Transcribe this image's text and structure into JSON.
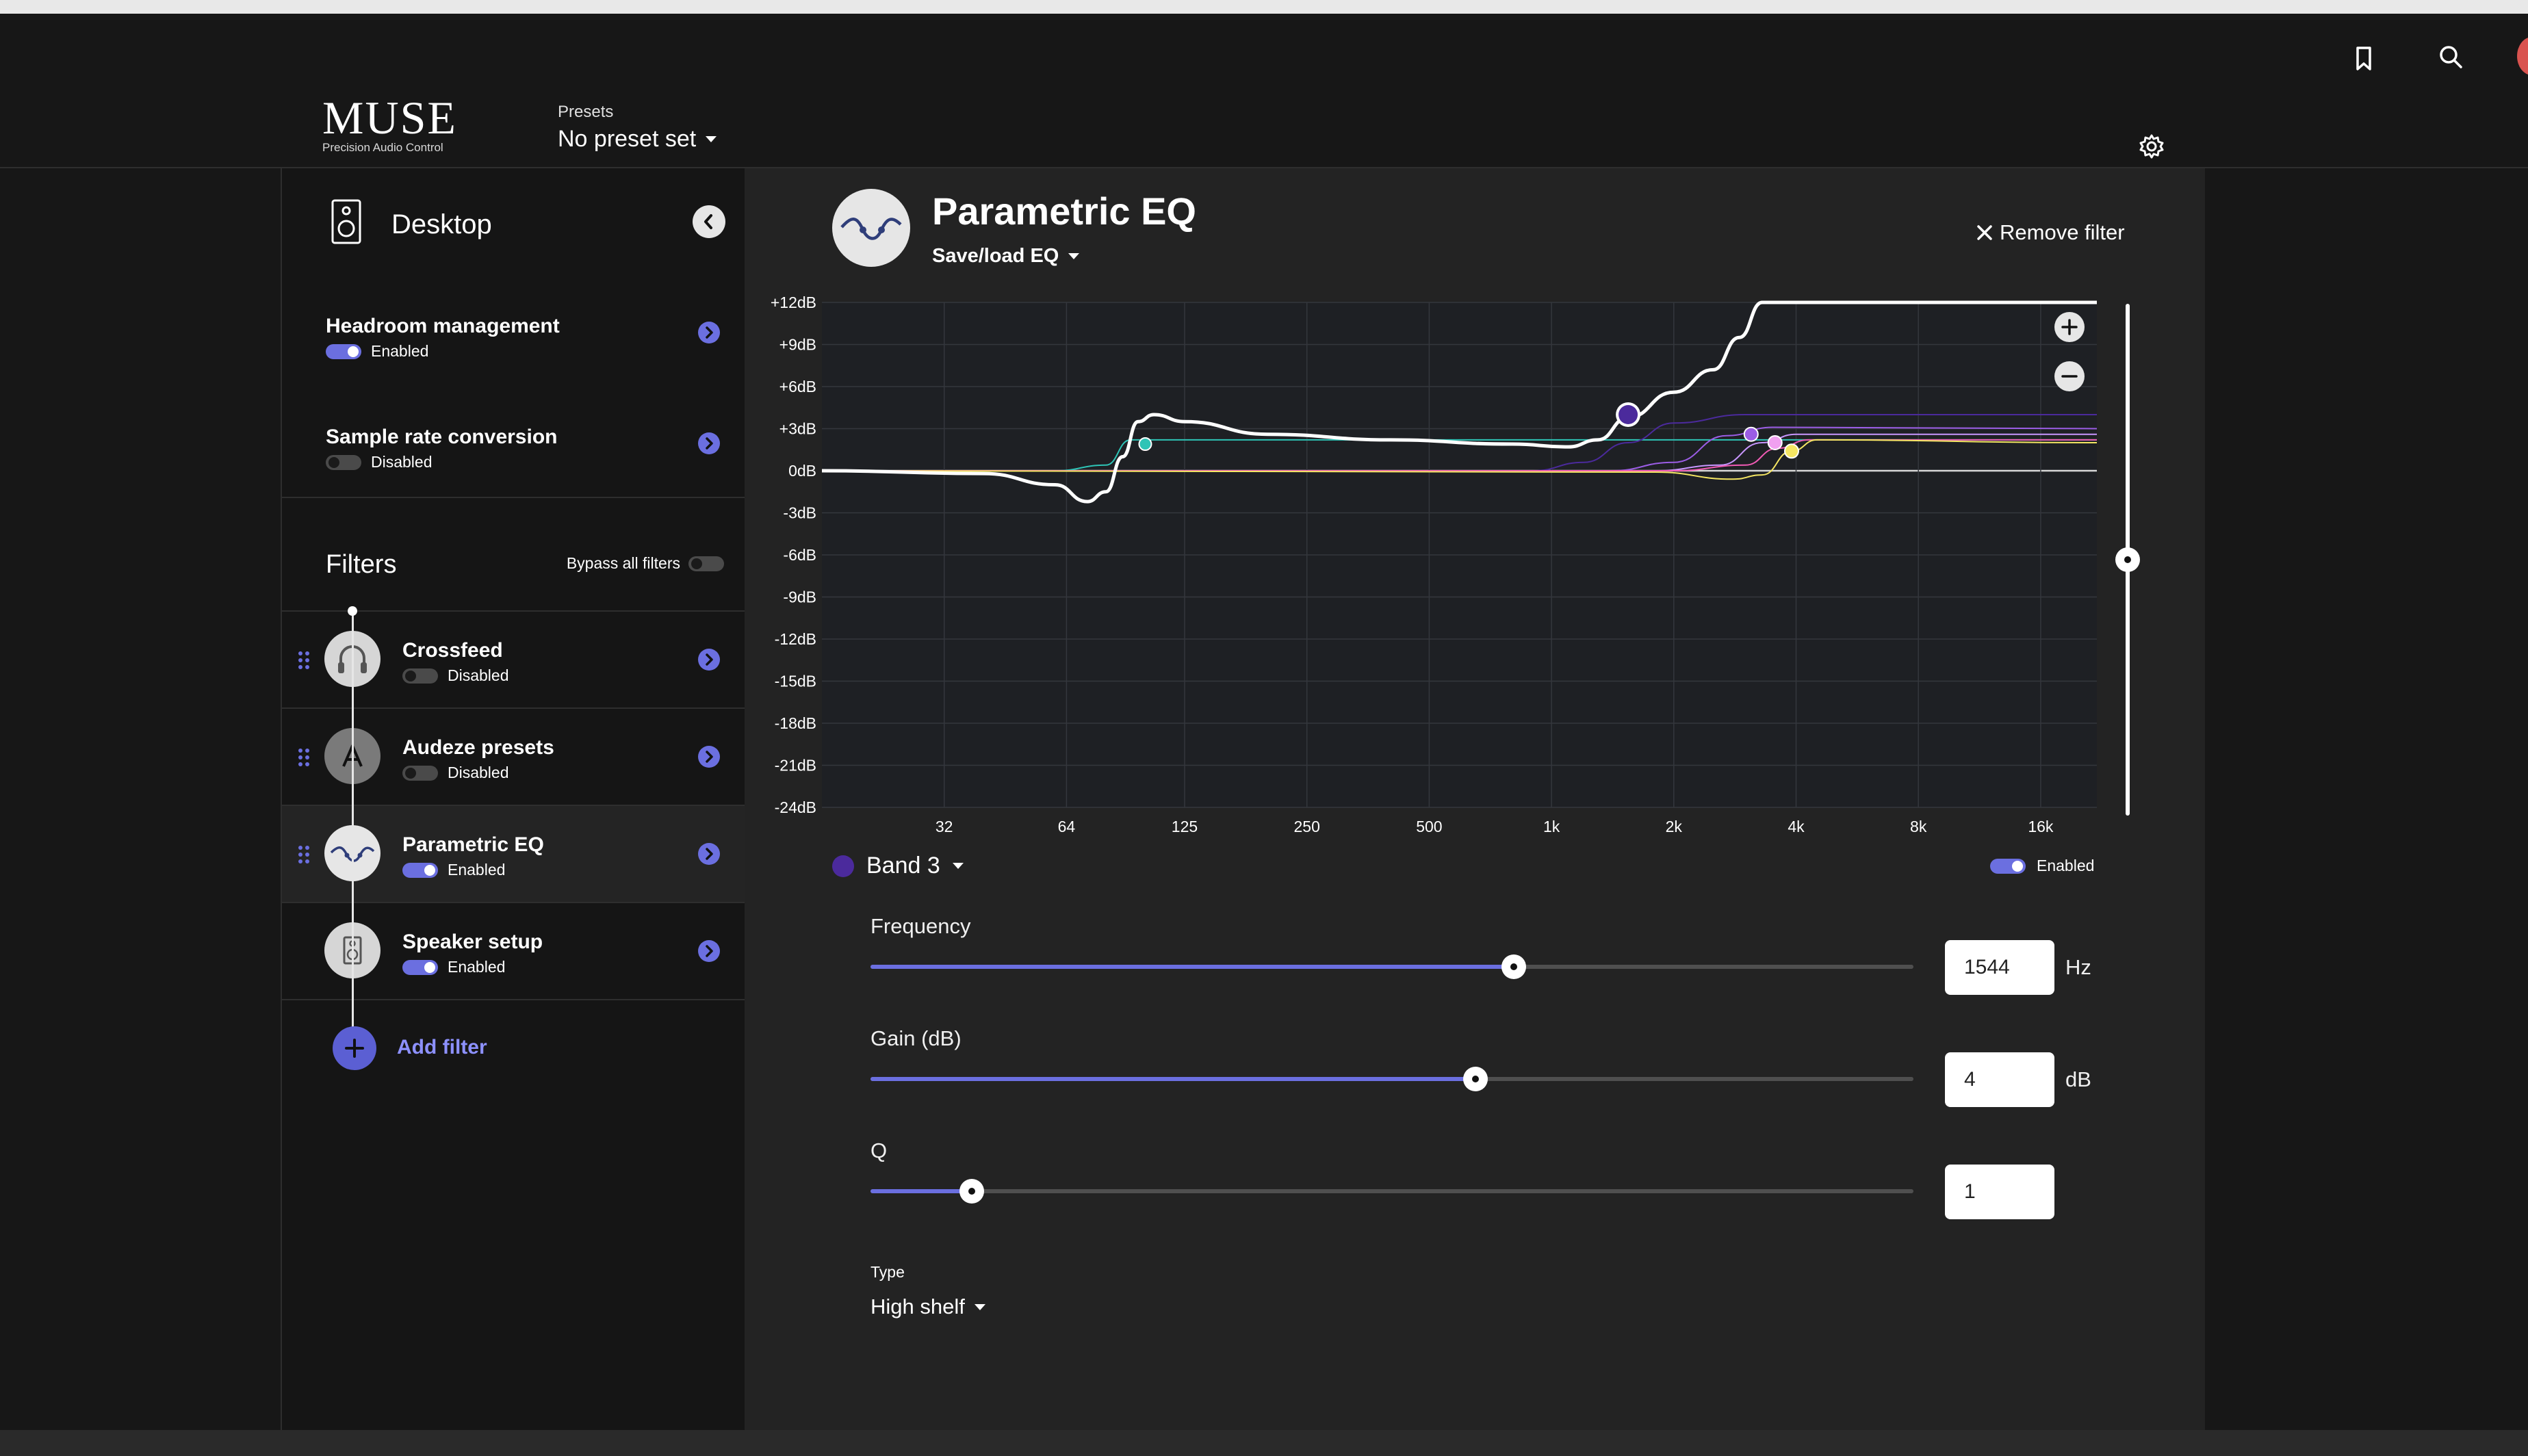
{
  "app": {
    "logo_main": "MUSE",
    "logo_sub": "Precision Audio Control"
  },
  "header": {
    "presets_label": "Presets",
    "presets_value": "No preset set",
    "icons": [
      "bookmark-icon",
      "search-icon",
      "settings-gear-icon"
    ]
  },
  "sidebar": {
    "device": "Desktop",
    "settings": [
      {
        "title": "Headroom management",
        "status": "Enabled",
        "on": true
      },
      {
        "title": "Sample rate conversion",
        "status": "Disabled",
        "on": false
      }
    ],
    "filters_title": "Filters",
    "bypass_label": "Bypass all filters",
    "filters": [
      {
        "title": "Crossfeed",
        "status": "Disabled",
        "on": false,
        "icon": "headphones-icon"
      },
      {
        "title": "Audeze presets",
        "status": "Disabled",
        "on": false,
        "icon": "audeze-logo-icon"
      },
      {
        "title": "Parametric EQ",
        "status": "Enabled",
        "on": true,
        "icon": "eq-wave-icon"
      },
      {
        "title": "Speaker setup",
        "status": "Enabled",
        "on": true,
        "icon": "speaker-icon"
      }
    ],
    "add_filter": "Add filter"
  },
  "eq": {
    "title": "Parametric EQ",
    "save_load": "Save/load EQ",
    "remove": "Remove filter",
    "band_label": "Band 3",
    "band_enabled": "Enabled",
    "params": {
      "frequency": {
        "label": "Frequency",
        "value": "1544",
        "unit": "Hz",
        "position": 0.617
      },
      "gain": {
        "label": "Gain (dB)",
        "value": "4",
        "unit": "dB",
        "position": 0.58
      },
      "q": {
        "label": "Q",
        "value": "1",
        "unit": "",
        "position": 0.097
      }
    },
    "type_label": "Type",
    "type_value": "High shelf",
    "zoom_plus": "+",
    "zoom_minus": "−"
  },
  "chart_data": {
    "type": "line",
    "title": "",
    "xlabel": "",
    "ylabel": "",
    "x_scale": "log",
    "xlim": [
      16,
      22000
    ],
    "ylim": [
      -24,
      12
    ],
    "x_ticks": [
      "32",
      "64",
      "125",
      "250",
      "500",
      "1k",
      "2k",
      "4k",
      "8k",
      "16k"
    ],
    "x_tick_values": [
      32,
      64,
      125,
      250,
      500,
      1000,
      2000,
      4000,
      8000,
      16000
    ],
    "y_ticks": [
      "+12dB",
      "+9dB",
      "+6dB",
      "+3dB",
      "0dB",
      "-3dB",
      "-6dB",
      "-9dB",
      "-12dB",
      "-15dB",
      "-18dB",
      "-21dB",
      "-24dB"
    ],
    "y_tick_values": [
      12,
      9,
      6,
      3,
      0,
      -3,
      -6,
      -9,
      -12,
      -15,
      -18,
      -21,
      -24
    ],
    "grid": true,
    "series": [
      {
        "color": "#ffffff",
        "width": 5,
        "points": [
          [
            16,
            0
          ],
          [
            40,
            -0.2
          ],
          [
            60,
            -1
          ],
          [
            72,
            -2.2
          ],
          [
            80,
            -1.5
          ],
          [
            88,
            1
          ],
          [
            96,
            3.5
          ],
          [
            105,
            4
          ],
          [
            125,
            3.5
          ],
          [
            200,
            2.6
          ],
          [
            400,
            2.2
          ],
          [
            800,
            1.9
          ],
          [
            1100,
            1.7
          ],
          [
            1300,
            2.2
          ],
          [
            1544,
            3.8
          ],
          [
            2000,
            5.6
          ],
          [
            2500,
            7.2
          ],
          [
            2900,
            9.5
          ],
          [
            3300,
            12
          ],
          [
            8000,
            12
          ],
          [
            22000,
            12
          ]
        ]
      },
      {
        "color": "#2ec4b6",
        "width": 2,
        "points": [
          [
            16,
            0
          ],
          [
            60,
            0
          ],
          [
            80,
            0.4
          ],
          [
            92,
            2.2
          ],
          [
            110,
            2.2
          ],
          [
            2000,
            2.2
          ],
          [
            22000,
            2.2
          ]
        ]
      },
      {
        "color": "#4b2a9c",
        "width": 2,
        "points": [
          [
            16,
            0
          ],
          [
            900,
            0
          ],
          [
            1200,
            0.6
          ],
          [
            1544,
            2
          ],
          [
            2000,
            3.4
          ],
          [
            3000,
            4
          ],
          [
            22000,
            4
          ]
        ]
      },
      {
        "color": "#9b5de5",
        "width": 2,
        "points": [
          [
            16,
            0
          ],
          [
            1400,
            0
          ],
          [
            2000,
            0.6
          ],
          [
            2700,
            2.5
          ],
          [
            3500,
            3.1
          ],
          [
            22000,
            3
          ]
        ]
      },
      {
        "color": "#c896ff",
        "width": 2,
        "points": [
          [
            16,
            0
          ],
          [
            1800,
            0
          ],
          [
            2600,
            0.4
          ],
          [
            3300,
            2
          ],
          [
            4000,
            2.6
          ],
          [
            22000,
            2.6
          ]
        ]
      },
      {
        "color": "#f15bb5",
        "width": 2,
        "points": [
          [
            16,
            0
          ],
          [
            2000,
            0
          ],
          [
            3000,
            0.4
          ],
          [
            3600,
            1.6
          ],
          [
            4300,
            2.2
          ],
          [
            22000,
            2.2
          ]
        ]
      },
      {
        "color": "#f5e663",
        "width": 2,
        "points": [
          [
            16,
            0
          ],
          [
            1800,
            -0.1
          ],
          [
            2800,
            -0.6
          ],
          [
            3300,
            -0.3
          ],
          [
            3900,
            1.4
          ],
          [
            4500,
            2.2
          ],
          [
            22000,
            2
          ]
        ]
      }
    ],
    "points": [
      {
        "x": 100,
        "y": 1.9,
        "color": "#2ec4b6",
        "r": 9
      },
      {
        "x": 1544,
        "y": 4,
        "color": "#4b2a9c",
        "r": 14,
        "selected": true
      },
      {
        "x": 3100,
        "y": 2.6,
        "color": "#9b5de5",
        "r": 10
      },
      {
        "x": 3550,
        "y": 2,
        "color": "#f0a0f0",
        "r": 10
      },
      {
        "x": 3900,
        "y": 1.4,
        "color": "#f5e663",
        "r": 10
      }
    ]
  }
}
